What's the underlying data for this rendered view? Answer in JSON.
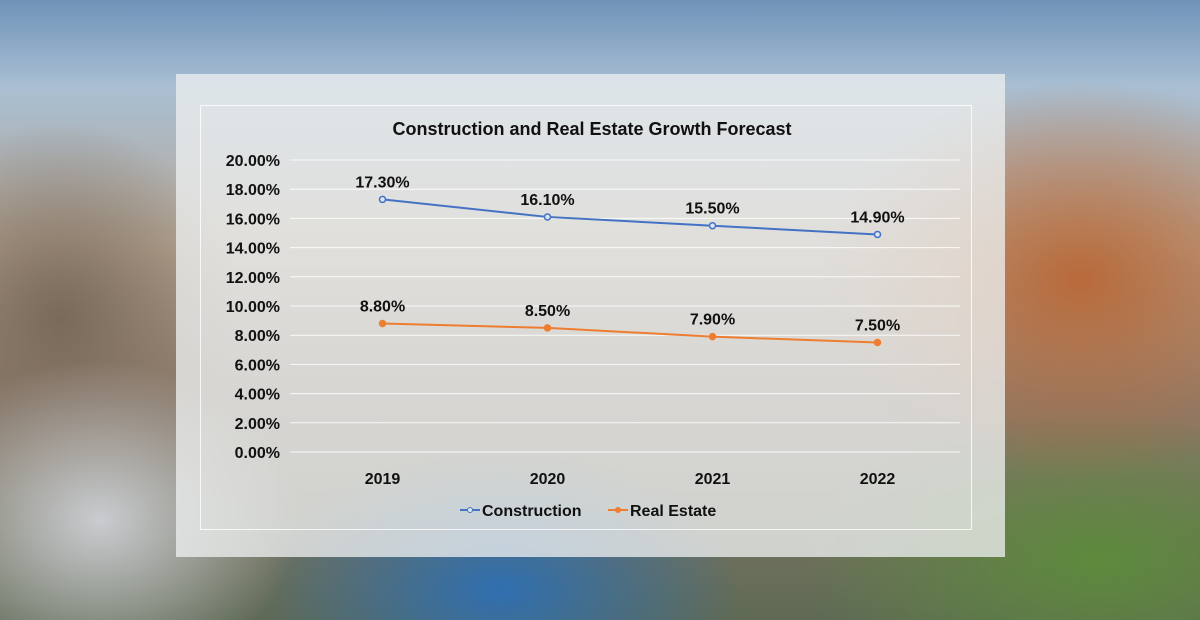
{
  "chart_data": {
    "type": "line",
    "title": "Construction and Real Estate Growth Forecast",
    "categories": [
      "2019",
      "2020",
      "2021",
      "2022"
    ],
    "series": [
      {
        "name": "Construction",
        "values": [
          17.3,
          16.1,
          15.5,
          14.9
        ],
        "labels": [
          "17.30%",
          "16.10%",
          "15.50%",
          "14.90%"
        ],
        "color": "#4472c4"
      },
      {
        "name": "Real Estate",
        "values": [
          8.8,
          8.5,
          7.9,
          7.5
        ],
        "labels": [
          "8.80%",
          "8.50%",
          "7.90%",
          "7.50%"
        ],
        "color": "#ed7d31"
      }
    ],
    "ylim": [
      0,
      20
    ],
    "yticks": [
      "0.00%",
      "2.00%",
      "4.00%",
      "6.00%",
      "8.00%",
      "10.00%",
      "12.00%",
      "14.00%",
      "16.00%",
      "18.00%",
      "20.00%"
    ],
    "grid": true,
    "legend": "bottom"
  }
}
